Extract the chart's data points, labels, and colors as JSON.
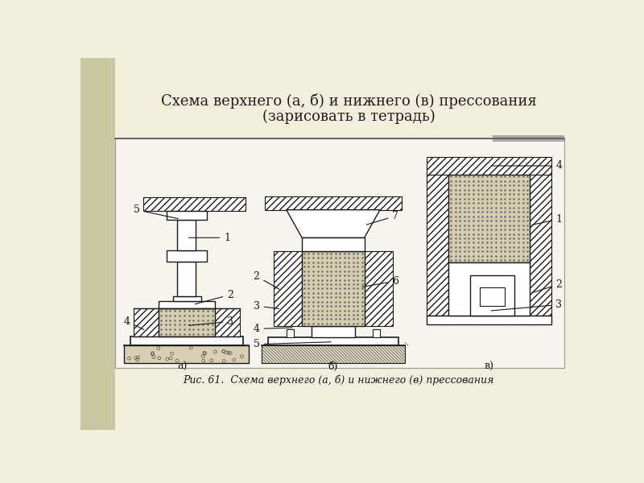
{
  "title_line1": "Схема верхнего (а, б) и нижнего (в) прессования",
  "title_line2": "(зарисовать в тетрадь)",
  "caption": "Рис. 61.  Схема верхнего (а, б) и нижнего (в) прессования",
  "bg_outer": "#f0eedc",
  "bg_left_strip": "#c8c8a0",
  "bg_panel": "#f5f4ee",
  "line_color": "#1a1a1a",
  "title_color": "#2a1a1a",
  "caption_color": "#1a1a1a",
  "title_fontsize": 13,
  "caption_fontsize": 9,
  "label_fontsize": 9
}
